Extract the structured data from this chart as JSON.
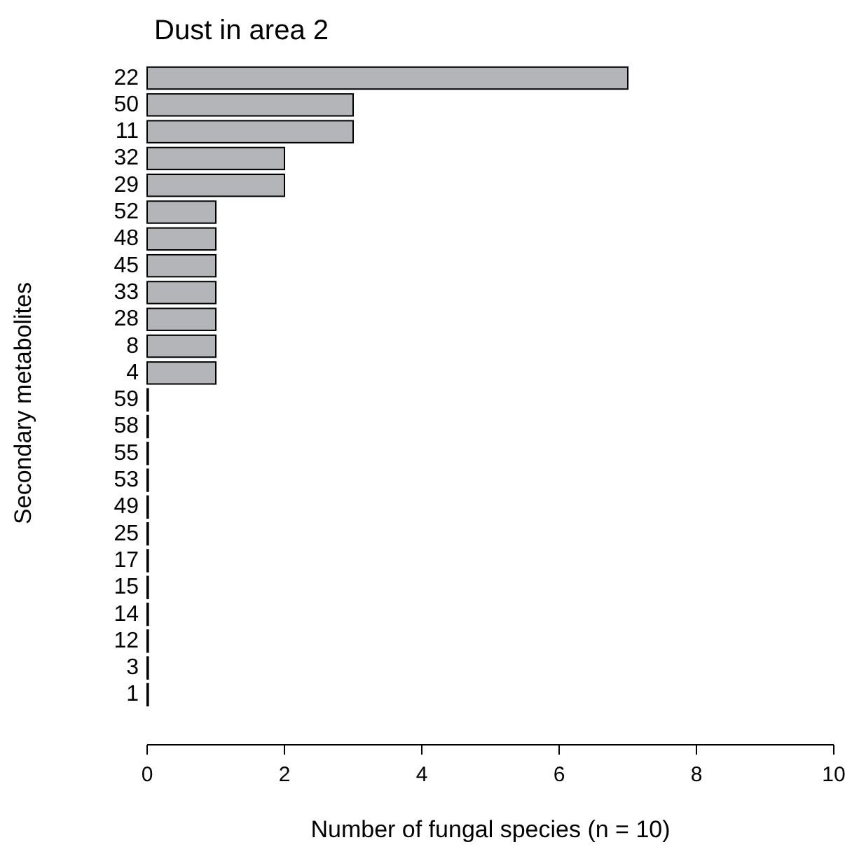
{
  "chart_data": {
    "type": "bar",
    "orientation": "horizontal",
    "title": "Dust in area 2",
    "xlabel": "Number of fungal species (n = 10)",
    "ylabel": "Secondary metabolites",
    "categories": [
      "22",
      "50",
      "11",
      "32",
      "29",
      "52",
      "48",
      "45",
      "33",
      "28",
      "8",
      "4",
      "59",
      "58",
      "55",
      "53",
      "49",
      "25",
      "17",
      "15",
      "14",
      "12",
      "3",
      "1"
    ],
    "values": [
      7,
      3,
      3,
      2,
      2,
      1,
      1,
      1,
      1,
      1,
      1,
      1,
      0,
      0,
      0,
      0,
      0,
      0,
      0,
      0,
      0,
      0,
      0,
      0
    ],
    "color": "#b3b5b8",
    "xlim": [
      0,
      10
    ],
    "xticks": [
      0,
      2,
      4,
      6,
      8,
      10
    ],
    "grid": false
  }
}
